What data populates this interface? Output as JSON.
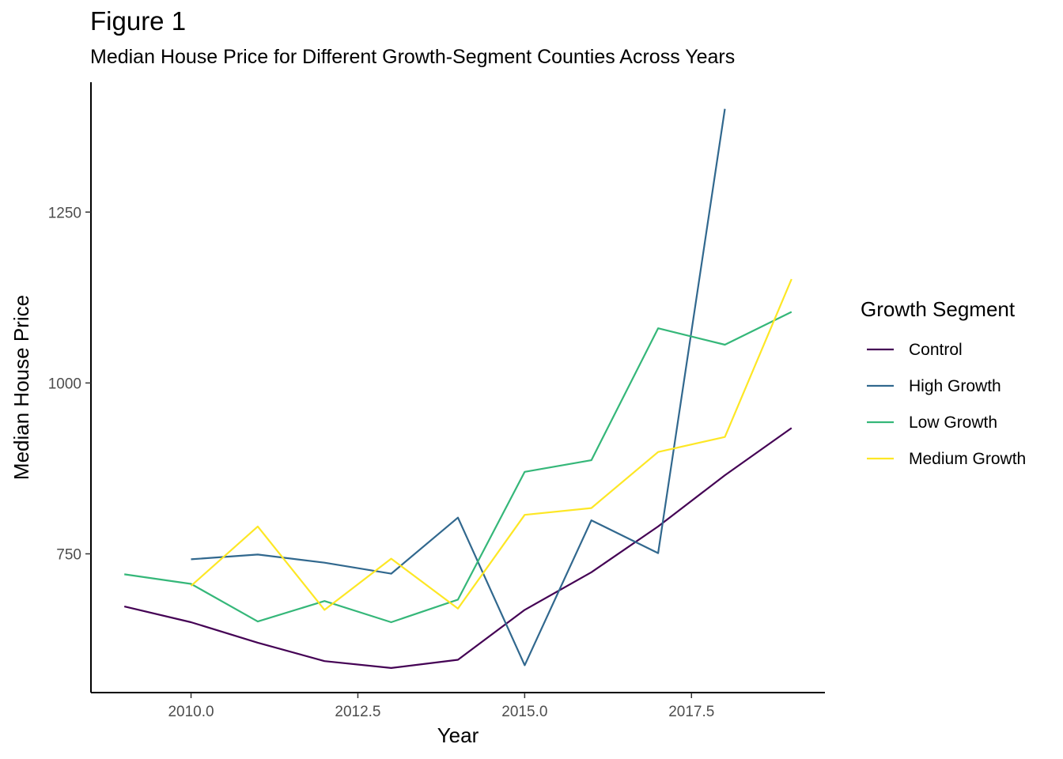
{
  "chart_data": {
    "type": "line",
    "title": "Figure 1",
    "subtitle": "Median House Price for Different Growth-Segment Counties Across Years",
    "xlabel": "Year",
    "ylabel": "Median House Price",
    "xlim": [
      2008.5,
      2019.5
    ],
    "ylim": [
      547,
      1440
    ],
    "x_ticks": [
      2010,
      2012.5,
      2015,
      2017.5
    ],
    "x_tick_labels": [
      "2010.0",
      "2012.5",
      "2015.0",
      "2017.5"
    ],
    "y_ticks": [
      750,
      1000,
      1250
    ],
    "y_tick_labels": [
      "750",
      "1000",
      "1250"
    ],
    "grid": false,
    "legend": {
      "title": "Growth Segment",
      "placement": "right"
    },
    "series": [
      {
        "name": "Control",
        "color": "#440154",
        "x": [
          2009,
          2010,
          2011,
          2012,
          2013,
          2014,
          2015,
          2016,
          2017,
          2018,
          2019
        ],
        "values": [
          673,
          650,
          620,
          593,
          583,
          595,
          668,
          723,
          790,
          865,
          934
        ]
      },
      {
        "name": "High Growth",
        "color": "#31688E",
        "x": [
          2010,
          2011,
          2012,
          2013,
          2014,
          2015,
          2016,
          2017,
          2018
        ],
        "values": [
          742,
          749,
          737,
          721,
          803,
          587,
          799,
          751,
          1401
        ]
      },
      {
        "name": "Low Growth",
        "color": "#35B779",
        "x": [
          2009,
          2010,
          2011,
          2012,
          2013,
          2014,
          2015,
          2016,
          2017,
          2018,
          2019
        ],
        "values": [
          720,
          706,
          651,
          681,
          650,
          683,
          870,
          887,
          1080,
          1056,
          1104
        ]
      },
      {
        "name": "Medium Growth",
        "color": "#FDE725",
        "x": [
          2010,
          2011,
          2012,
          2013,
          2014,
          2015,
          2016,
          2017,
          2018,
          2019
        ],
        "values": [
          703,
          790,
          668,
          743,
          670,
          807,
          817,
          899,
          921,
          1152
        ]
      }
    ]
  }
}
